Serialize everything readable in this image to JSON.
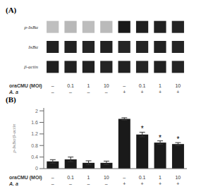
{
  "chart_data": [
    {
      "type": "heatmap",
      "title": "(A)",
      "rows": [
        "p-IκBα",
        "IκBα",
        "β-actin"
      ],
      "cells": [
        [
          0.25,
          0.28,
          0.26,
          0.27,
          0.9,
          0.88,
          0.87,
          0.86
        ],
        [
          0.88,
          0.87,
          0.86,
          0.87,
          0.85,
          0.86,
          0.87,
          0.86
        ],
        [
          0.88,
          0.87,
          0.87,
          0.86,
          0.87,
          0.86,
          0.87,
          0.86
        ]
      ],
      "x_label_rows": [
        {
          "label": "oraCMU (MOI)",
          "values": [
            "–",
            "0.1",
            "1",
            "10",
            "–",
            "0.1",
            "1",
            "10"
          ]
        },
        {
          "label": "A. a",
          "values": [
            "–",
            "–",
            "–",
            "–",
            "+",
            "+",
            "+",
            "+"
          ]
        }
      ]
    },
    {
      "type": "bar",
      "title": "(B)",
      "ylabel": "p-IκBα/β-actin",
      "values": [
        0.25,
        0.32,
        0.2,
        0.2,
        1.72,
        1.18,
        0.9,
        0.85
      ],
      "errors": [
        0.06,
        0.08,
        0.07,
        0.06,
        0.04,
        0.08,
        0.06,
        0.05
      ],
      "annotations": [
        null,
        null,
        null,
        null,
        null,
        "*",
        "*",
        "*"
      ],
      "color": "#1a1a1a",
      "ylim": [
        0,
        2.1
      ],
      "yticks": [
        0,
        0.4,
        0.8,
        1.2,
        1.6,
        2.0
      ],
      "grid": false,
      "x_label_rows": [
        {
          "label": "oraCMU (MOI)",
          "values": [
            "–",
            "0.1",
            "1",
            "10",
            "–",
            "0.1",
            "1",
            "10"
          ]
        },
        {
          "label": "A. a",
          "values": [
            "–",
            "–",
            "–",
            "–",
            "+",
            "+",
            "+",
            "+"
          ]
        }
      ]
    }
  ]
}
